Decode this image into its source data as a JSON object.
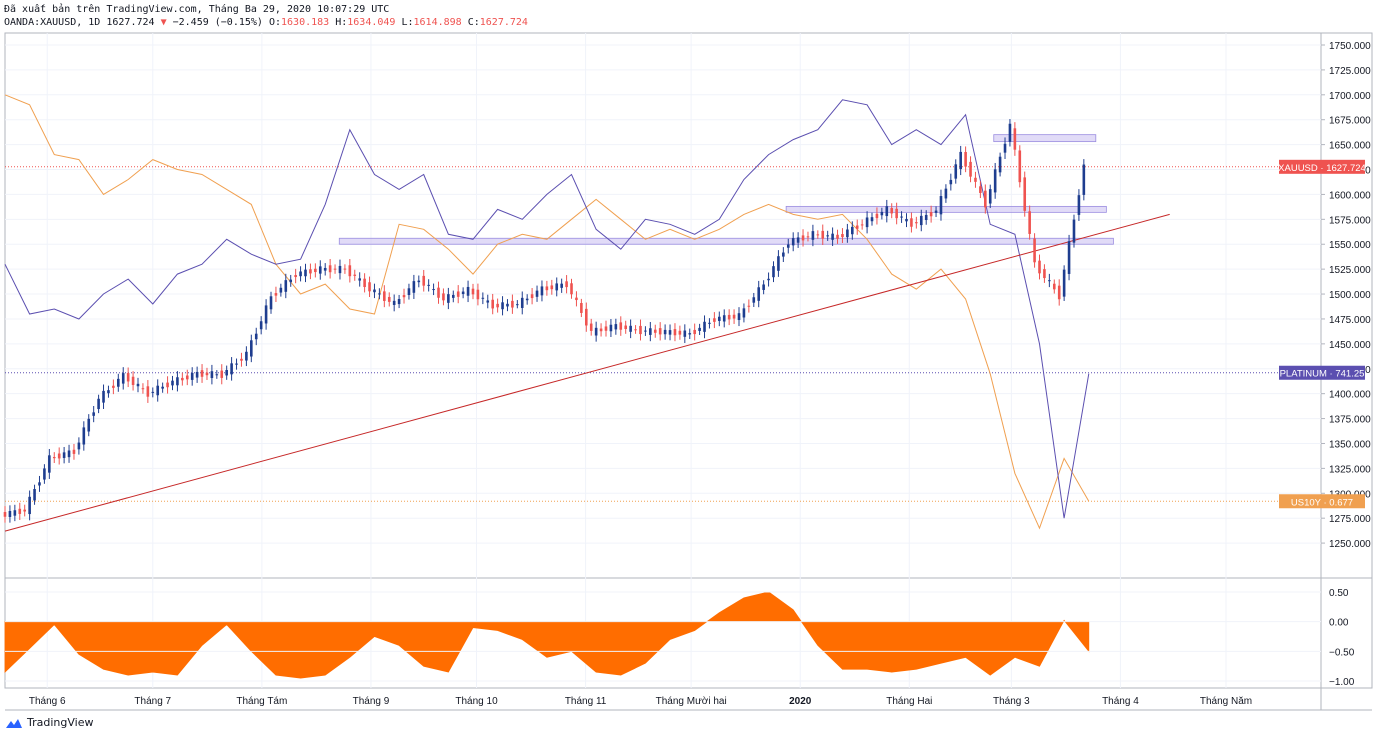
{
  "header": {
    "line1": "Đã xuất bản trên TradingView.com, Tháng Ba 29, 2020 10:07:29 UTC",
    "symbol": "OANDA:XAUUSD, 1D",
    "last": "1627.724",
    "change": "−2.459 (−0.15%)",
    "o_label": "O:",
    "o_val": "1630.183",
    "h_label": "H:",
    "h_val": "1634.049",
    "l_label": "L:",
    "l_val": "1614.898",
    "c_label": "C:",
    "c_val": "1627.724"
  },
  "brand": {
    "name": "TradingView"
  },
  "colors": {
    "up": "#1e3d8f",
    "down": "#ef5350",
    "platinum": "#5b4fb0",
    "us10y": "#f0a050",
    "trend": "#c62828",
    "osc": "#ff6d00",
    "zone": "#c8bdf0"
  },
  "chart_data": [
    {
      "type": "line",
      "title": "",
      "xlabel": "",
      "ylabel": "",
      "ylim": [
        1225,
        1760
      ],
      "yticks": [
        "1750.000",
        "1725.000",
        "1700.000",
        "1675.000",
        "1650.000",
        "1625.000",
        "1600.000",
        "1575.000",
        "1550.000",
        "1525.000",
        "1500.000",
        "1475.000",
        "1450.000",
        "1425.000",
        "1400.000",
        "1375.000",
        "1350.000",
        "1325.000",
        "1300.000",
        "1275.000",
        "1250.000"
      ],
      "xticks": [
        "Tháng 6",
        "Tháng 7",
        "Tháng Tám",
        "Tháng 9",
        "Tháng 10",
        "Tháng 11",
        "Tháng Mười hai",
        "2020",
        "Tháng Hai",
        "Tháng 3",
        "Tháng 4",
        "Tháng Năm"
      ],
      "series": [
        {
          "name": "XAUUSD",
          "kind": "candlestick",
          "last_label": "1627.724",
          "close_path": [
            [
              "2019-05-20",
              1278
            ],
            [
              "2019-05-27",
              1283
            ],
            [
              "2019-06-03",
              1335
            ],
            [
              "2019-06-10",
              1342
            ],
            [
              "2019-06-17",
              1395
            ],
            [
              "2019-06-24",
              1418
            ],
            [
              "2019-07-01",
              1400
            ],
            [
              "2019-07-08",
              1412
            ],
            [
              "2019-07-15",
              1420
            ],
            [
              "2019-07-22",
              1419
            ],
            [
              "2019-07-29",
              1440
            ],
            [
              "2019-08-05",
              1497
            ],
            [
              "2019-08-12",
              1520
            ],
            [
              "2019-08-19",
              1525
            ],
            [
              "2019-08-26",
              1525
            ],
            [
              "2019-09-02",
              1505
            ],
            [
              "2019-09-09",
              1490
            ],
            [
              "2019-09-16",
              1515
            ],
            [
              "2019-09-23",
              1495
            ],
            [
              "2019-09-30",
              1504
            ],
            [
              "2019-10-07",
              1488
            ],
            [
              "2019-10-14",
              1490
            ],
            [
              "2019-10-21",
              1505
            ],
            [
              "2019-10-28",
              1510
            ],
            [
              "2019-11-04",
              1462
            ],
            [
              "2019-11-11",
              1468
            ],
            [
              "2019-11-18",
              1463
            ],
            [
              "2019-11-25",
              1462
            ],
            [
              "2019-12-02",
              1460
            ],
            [
              "2019-12-09",
              1475
            ],
            [
              "2019-12-16",
              1478
            ],
            [
              "2019-12-23",
              1510
            ],
            [
              "2019-12-30",
              1552
            ],
            [
              "2020-01-06",
              1560
            ],
            [
              "2020-01-13",
              1557
            ],
            [
              "2020-01-20",
              1571
            ],
            [
              "2020-01-27",
              1585
            ],
            [
              "2020-02-03",
              1570
            ],
            [
              "2020-02-10",
              1584
            ],
            [
              "2020-02-17",
              1640
            ],
            [
              "2020-02-24",
              1590
            ],
            [
              "2020-03-02",
              1670
            ],
            [
              "2020-03-09",
              1530
            ],
            [
              "2020-03-16",
              1498
            ],
            [
              "2020-03-23",
              1628
            ]
          ]
        },
        {
          "name": "PLATINUM",
          "last_label": "741.25",
          "path": [
            [
              "2019-05-20",
              1530
            ],
            [
              "2019-05-27",
              1480
            ],
            [
              "2019-06-03",
              1485
            ],
            [
              "2019-06-10",
              1475
            ],
            [
              "2019-06-17",
              1500
            ],
            [
              "2019-06-24",
              1515
            ],
            [
              "2019-07-01",
              1490
            ],
            [
              "2019-07-08",
              1520
            ],
            [
              "2019-07-15",
              1530
            ],
            [
              "2019-07-22",
              1555
            ],
            [
              "2019-07-29",
              1540
            ],
            [
              "2019-08-05",
              1530
            ],
            [
              "2019-08-12",
              1535
            ],
            [
              "2019-08-19",
              1590
            ],
            [
              "2019-08-26",
              1665
            ],
            [
              "2019-09-02",
              1620
            ],
            [
              "2019-09-09",
              1605
            ],
            [
              "2019-09-16",
              1620
            ],
            [
              "2019-09-23",
              1560
            ],
            [
              "2019-09-30",
              1555
            ],
            [
              "2019-10-07",
              1585
            ],
            [
              "2019-10-14",
              1575
            ],
            [
              "2019-10-21",
              1600
            ],
            [
              "2019-10-28",
              1620
            ],
            [
              "2019-11-04",
              1565
            ],
            [
              "2019-11-11",
              1545
            ],
            [
              "2019-11-18",
              1575
            ],
            [
              "2019-11-25",
              1570
            ],
            [
              "2019-12-02",
              1560
            ],
            [
              "2019-12-09",
              1575
            ],
            [
              "2019-12-16",
              1615
            ],
            [
              "2019-12-23",
              1640
            ],
            [
              "2019-12-30",
              1655
            ],
            [
              "2020-01-06",
              1665
            ],
            [
              "2020-01-13",
              1695
            ],
            [
              "2020-01-20",
              1690
            ],
            [
              "2020-01-27",
              1650
            ],
            [
              "2020-02-03",
              1665
            ],
            [
              "2020-02-10",
              1650
            ],
            [
              "2020-02-17",
              1680
            ],
            [
              "2020-02-24",
              1570
            ],
            [
              "2020-03-02",
              1560
            ],
            [
              "2020-03-09",
              1450
            ],
            [
              "2020-03-16",
              1275
            ],
            [
              "2020-03-23",
              1420
            ]
          ]
        },
        {
          "name": "US10Y",
          "last_label": "0.677",
          "path": [
            [
              "2019-05-20",
              1700
            ],
            [
              "2019-05-27",
              1690
            ],
            [
              "2019-06-03",
              1640
            ],
            [
              "2019-06-10",
              1635
            ],
            [
              "2019-06-17",
              1600
            ],
            [
              "2019-06-24",
              1615
            ],
            [
              "2019-07-01",
              1635
            ],
            [
              "2019-07-08",
              1625
            ],
            [
              "2019-07-15",
              1620
            ],
            [
              "2019-07-22",
              1605
            ],
            [
              "2019-07-29",
              1590
            ],
            [
              "2019-08-05",
              1530
            ],
            [
              "2019-08-12",
              1500
            ],
            [
              "2019-08-19",
              1510
            ],
            [
              "2019-08-26",
              1485
            ],
            [
              "2019-09-02",
              1480
            ],
            [
              "2019-09-09",
              1570
            ],
            [
              "2019-09-16",
              1565
            ],
            [
              "2019-09-23",
              1545
            ],
            [
              "2019-09-30",
              1520
            ],
            [
              "2019-10-07",
              1550
            ],
            [
              "2019-10-14",
              1560
            ],
            [
              "2019-10-21",
              1555
            ],
            [
              "2019-10-28",
              1575
            ],
            [
              "2019-11-04",
              1595
            ],
            [
              "2019-11-11",
              1575
            ],
            [
              "2019-11-18",
              1555
            ],
            [
              "2019-11-25",
              1565
            ],
            [
              "2019-12-02",
              1555
            ],
            [
              "2019-12-09",
              1565
            ],
            [
              "2019-12-16",
              1580
            ],
            [
              "2019-12-23",
              1590
            ],
            [
              "2019-12-30",
              1580
            ],
            [
              "2020-01-06",
              1575
            ],
            [
              "2020-01-13",
              1580
            ],
            [
              "2020-01-20",
              1555
            ],
            [
              "2020-01-27",
              1520
            ],
            [
              "2020-02-03",
              1505
            ],
            [
              "2020-02-10",
              1525
            ],
            [
              "2020-02-17",
              1495
            ],
            [
              "2020-02-24",
              1420
            ],
            [
              "2020-03-02",
              1320
            ],
            [
              "2020-03-09",
              1265
            ],
            [
              "2020-03-16",
              1335
            ],
            [
              "2020-03-23",
              1292
            ]
          ]
        }
      ],
      "horizontal_lines": [
        {
          "name": "XAUUSD",
          "value": 1627.724
        },
        {
          "name": "PLATINUM",
          "value": 1421
        },
        {
          "name": "US10Y",
          "value": 1292
        }
      ],
      "zones": [
        {
          "from": "2020-02-25",
          "to": "2020-03-25",
          "low": 1653,
          "high": 1660
        },
        {
          "from": "2019-12-28",
          "to": "2020-03-28",
          "low": 1582,
          "high": 1588
        },
        {
          "from": "2019-08-23",
          "to": "2020-03-30",
          "low": 1550,
          "high": 1556
        }
      ],
      "trendline": [
        [
          "2019-05-20",
          1262
        ],
        [
          "2020-04-15",
          1580
        ]
      ]
    },
    {
      "type": "area",
      "title": "",
      "ylim": [
        -1.05,
        0.6
      ],
      "yticks": [
        "0.50",
        "0.00",
        "−0.50",
        "−1.00"
      ],
      "values": [
        [
          "2019-05-20",
          -0.85
        ],
        [
          "2019-05-27",
          -0.45
        ],
        [
          "2019-06-03",
          -0.05
        ],
        [
          "2019-06-10",
          -0.55
        ],
        [
          "2019-06-17",
          -0.8
        ],
        [
          "2019-06-24",
          -0.9
        ],
        [
          "2019-07-01",
          -0.85
        ],
        [
          "2019-07-08",
          -0.9
        ],
        [
          "2019-07-15",
          -0.4
        ],
        [
          "2019-07-22",
          -0.05
        ],
        [
          "2019-07-29",
          -0.5
        ],
        [
          "2019-08-05",
          -0.9
        ],
        [
          "2019-08-12",
          -0.95
        ],
        [
          "2019-08-19",
          -0.9
        ],
        [
          "2019-08-26",
          -0.6
        ],
        [
          "2019-09-02",
          -0.25
        ],
        [
          "2019-09-09",
          -0.4
        ],
        [
          "2019-09-16",
          -0.75
        ],
        [
          "2019-09-23",
          -0.85
        ],
        [
          "2019-09-30",
          -0.1
        ],
        [
          "2019-10-07",
          -0.15
        ],
        [
          "2019-10-14",
          -0.3
        ],
        [
          "2019-10-21",
          -0.6
        ],
        [
          "2019-10-28",
          -0.5
        ],
        [
          "2019-11-04",
          -0.85
        ],
        [
          "2019-11-11",
          -0.9
        ],
        [
          "2019-11-18",
          -0.7
        ],
        [
          "2019-11-25",
          -0.3
        ],
        [
          "2019-12-02",
          -0.15
        ],
        [
          "2019-12-09",
          0.15
        ],
        [
          "2019-12-16",
          0.4
        ],
        [
          "2019-12-23",
          0.5
        ],
        [
          "2019-12-30",
          0.2
        ],
        [
          "2020-01-06",
          -0.4
        ],
        [
          "2020-01-13",
          -0.8
        ],
        [
          "2020-01-20",
          -0.8
        ],
        [
          "2020-01-27",
          -0.85
        ],
        [
          "2020-02-03",
          -0.8
        ],
        [
          "2020-02-10",
          -0.7
        ],
        [
          "2020-02-17",
          -0.6
        ],
        [
          "2020-02-24",
          -0.9
        ],
        [
          "2020-03-02",
          -0.6
        ],
        [
          "2020-03-09",
          -0.75
        ],
        [
          "2020-03-16",
          0.02
        ],
        [
          "2020-03-23",
          -0.5
        ]
      ]
    }
  ]
}
